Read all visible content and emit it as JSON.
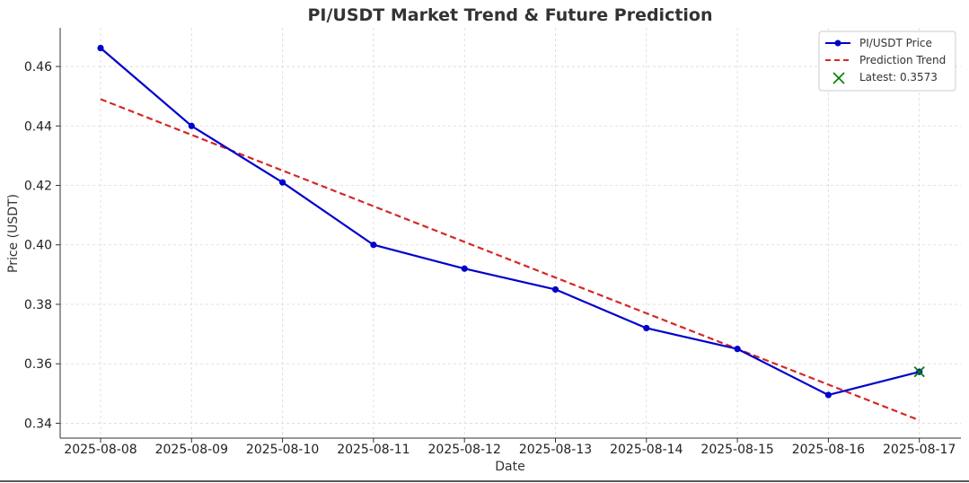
{
  "chart_data": {
    "type": "line",
    "title": "PI/USDT Market Trend & Future Prediction",
    "xlabel": "Date",
    "ylabel": "Price (USDT)",
    "categories": [
      "2025-08-08",
      "2025-08-09",
      "2025-08-10",
      "2025-08-11",
      "2025-08-12",
      "2025-08-13",
      "2025-08-14",
      "2025-08-15",
      "2025-08-16",
      "2025-08-17"
    ],
    "ylim": [
      0.335,
      0.473
    ],
    "yticks": [
      0.34,
      0.36,
      0.38,
      0.4,
      0.42,
      0.44,
      0.46
    ],
    "ytick_labels": [
      "0.34",
      "0.36",
      "0.38",
      "0.40",
      "0.42",
      "0.44",
      "0.46"
    ],
    "grid": true,
    "legend_position": "top-right",
    "series": [
      {
        "name": "PI/USDT Price",
        "style": "solid-marker",
        "color": "#0000cc",
        "values": [
          0.4662,
          0.44,
          0.421,
          0.4,
          0.392,
          0.385,
          0.372,
          0.365,
          0.3495,
          0.3573
        ]
      },
      {
        "name": "Prediction Trend",
        "style": "dashed",
        "color": "#d62728",
        "values": [
          0.449,
          0.437,
          0.425,
          0.413,
          0.401,
          0.389,
          0.377,
          0.365,
          0.353,
          0.341
        ]
      }
    ],
    "annotations": [
      {
        "name": "Latest: 0.3573",
        "marker": "x",
        "color": "#008000",
        "category": "2025-08-17",
        "value": 0.3573
      }
    ]
  }
}
